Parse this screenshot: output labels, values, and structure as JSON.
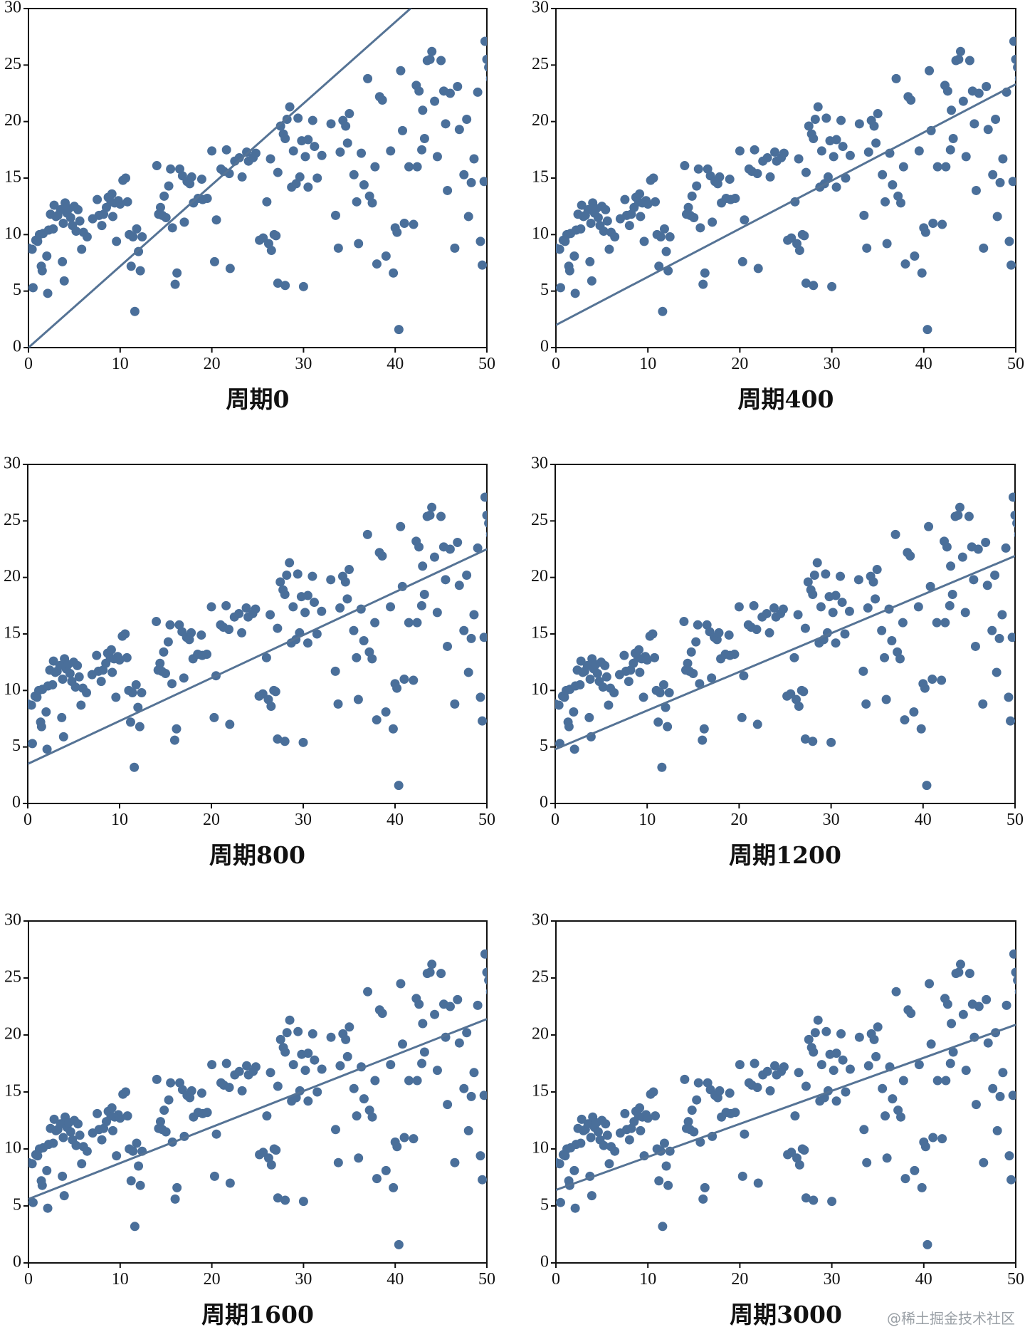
{
  "watermark": "@稀土掘金技术社区",
  "colors": {
    "marker": "#4a6f9a",
    "line": "#557395",
    "axis": "#111111"
  },
  "chart_data": [
    {
      "type": "scatter",
      "title": "周期0",
      "xlim": [
        0,
        50
      ],
      "ylim": [
        0,
        30
      ],
      "xticks": [
        0,
        10,
        20,
        30,
        40,
        50
      ],
      "yticks": [
        0,
        5,
        10,
        15,
        20,
        25,
        30
      ],
      "grid": false,
      "fit_line": {
        "intercept": 0.0,
        "slope": 0.72
      },
      "points": "shared"
    },
    {
      "type": "scatter",
      "title": "周期400",
      "xlim": [
        0,
        50
      ],
      "ylim": [
        0,
        30
      ],
      "xticks": [
        0,
        10,
        20,
        30,
        40,
        50
      ],
      "yticks": [
        0,
        5,
        10,
        15,
        20,
        25,
        30
      ],
      "grid": false,
      "fit_line": {
        "intercept": 2.0,
        "slope": 0.426
      },
      "points": "shared"
    },
    {
      "type": "scatter",
      "title": "周期800",
      "xlim": [
        0,
        50
      ],
      "ylim": [
        0,
        30
      ],
      "xticks": [
        0,
        10,
        20,
        30,
        40,
        50
      ],
      "yticks": [
        0,
        5,
        10,
        15,
        20,
        25,
        30
      ],
      "grid": false,
      "fit_line": {
        "intercept": 3.5,
        "slope": 0.38
      },
      "points": "shared"
    },
    {
      "type": "scatter",
      "title": "周期1200",
      "xlim": [
        0,
        50
      ],
      "ylim": [
        0,
        30
      ],
      "xticks": [
        0,
        10,
        20,
        30,
        40,
        50
      ],
      "yticks": [
        0,
        5,
        10,
        15,
        20,
        25,
        30
      ],
      "grid": false,
      "fit_line": {
        "intercept": 4.8,
        "slope": 0.342
      },
      "points": "shared"
    },
    {
      "type": "scatter",
      "title": "周期1600",
      "xlim": [
        0,
        50
      ],
      "ylim": [
        0,
        30
      ],
      "xticks": [
        0,
        10,
        20,
        30,
        40,
        50
      ],
      "yticks": [
        0,
        5,
        10,
        15,
        20,
        25,
        30
      ],
      "grid": false,
      "fit_line": {
        "intercept": 5.6,
        "slope": 0.316
      },
      "points": "shared"
    },
    {
      "type": "scatter",
      "title": "周期3000",
      "xlim": [
        0,
        50
      ],
      "ylim": [
        0,
        30
      ],
      "xticks": [
        0,
        10,
        20,
        30,
        40,
        50
      ],
      "yticks": [
        0,
        5,
        10,
        15,
        20,
        25,
        30
      ],
      "grid": false,
      "fit_line": {
        "intercept": 6.4,
        "slope": 0.29
      },
      "points": "shared"
    }
  ],
  "scatter_points": [
    [
      0.0,
      8.8
    ],
    [
      0.4,
      8.7
    ],
    [
      0.5,
      5.3
    ],
    [
      0.8,
      9.5
    ],
    [
      1.0,
      9.4
    ],
    [
      1.2,
      10.0
    ],
    [
      1.4,
      7.2
    ],
    [
      1.5,
      6.8
    ],
    [
      1.6,
      10.1
    ],
    [
      2.0,
      8.1
    ],
    [
      2.1,
      4.8
    ],
    [
      2.2,
      10.4
    ],
    [
      2.4,
      11.8
    ],
    [
      2.7,
      10.5
    ],
    [
      2.8,
      12.6
    ],
    [
      3.0,
      11.6
    ],
    [
      3.2,
      11.7
    ],
    [
      3.5,
      12.2
    ],
    [
      3.7,
      7.6
    ],
    [
      3.8,
      11.0
    ],
    [
      3.9,
      5.9
    ],
    [
      4.0,
      12.8
    ],
    [
      4.2,
      11.9
    ],
    [
      4.4,
      12.3
    ],
    [
      4.6,
      11.5
    ],
    [
      4.8,
      10.8
    ],
    [
      5.0,
      12.5
    ],
    [
      5.2,
      10.3
    ],
    [
      5.4,
      12.2
    ],
    [
      5.6,
      11.2
    ],
    [
      5.8,
      8.7
    ],
    [
      6.0,
      10.2
    ],
    [
      7.5,
      13.1
    ],
    [
      7.7,
      11.7
    ],
    [
      8.0,
      10.8
    ],
    [
      8.2,
      11.8
    ],
    [
      8.5,
      12.4
    ],
    [
      8.7,
      13.3
    ],
    [
      9.0,
      12.9
    ],
    [
      9.2,
      11.6
    ],
    [
      9.4,
      12.8
    ],
    [
      9.6,
      9.4
    ],
    [
      9.8,
      13.0
    ],
    [
      10.0,
      12.7
    ],
    [
      10.3,
      14.8
    ],
    [
      10.6,
      15.0
    ],
    [
      10.8,
      12.9
    ],
    [
      11.0,
      10.0
    ],
    [
      11.2,
      7.2
    ],
    [
      11.4,
      9.8
    ],
    [
      11.6,
      3.2
    ],
    [
      11.8,
      10.5
    ],
    [
      12.0,
      8.5
    ],
    [
      12.2,
      6.8
    ],
    [
      12.4,
      9.8
    ],
    [
      14.0,
      16.1
    ],
    [
      14.2,
      11.8
    ],
    [
      14.4,
      12.4
    ],
    [
      14.6,
      11.7
    ],
    [
      14.8,
      13.4
    ],
    [
      15.0,
      11.5
    ],
    [
      15.3,
      14.3
    ],
    [
      15.5,
      15.8
    ],
    [
      15.7,
      10.6
    ],
    [
      16.0,
      5.6
    ],
    [
      16.2,
      6.6
    ],
    [
      16.5,
      15.8
    ],
    [
      16.8,
      15.2
    ],
    [
      17.0,
      11.1
    ],
    [
      17.3,
      14.7
    ],
    [
      17.6,
      14.5
    ],
    [
      17.8,
      15.1
    ],
    [
      18.0,
      12.8
    ],
    [
      18.5,
      13.2
    ],
    [
      19.0,
      13.1
    ],
    [
      19.5,
      13.2
    ],
    [
      20.0,
      17.4
    ],
    [
      20.3,
      7.6
    ],
    [
      20.5,
      11.3
    ],
    [
      21.0,
      15.8
    ],
    [
      21.3,
      15.6
    ],
    [
      21.6,
      17.5
    ],
    [
      22.0,
      7.0
    ],
    [
      22.5,
      16.5
    ],
    [
      23.0,
      16.8
    ],
    [
      23.3,
      15.1
    ],
    [
      23.8,
      17.3
    ],
    [
      24.0,
      16.5
    ],
    [
      24.5,
      16.8
    ],
    [
      24.8,
      17.2
    ],
    [
      25.2,
      9.5
    ],
    [
      26.0,
      12.9
    ],
    [
      26.2,
      9.2
    ],
    [
      26.5,
      8.6
    ],
    [
      26.8,
      10.0
    ],
    [
      27.0,
      9.9
    ],
    [
      27.2,
      15.5
    ],
    [
      27.5,
      19.6
    ],
    [
      27.8,
      18.9
    ],
    [
      28.0,
      18.5
    ],
    [
      28.2,
      20.2
    ],
    [
      28.5,
      21.3
    ],
    [
      28.7,
      14.2
    ],
    [
      28.9,
      17.4
    ],
    [
      29.2,
      14.5
    ],
    [
      29.4,
      20.3
    ],
    [
      29.6,
      15.1
    ],
    [
      29.8,
      18.3
    ],
    [
      27.2,
      5.7
    ],
    [
      28.0,
      5.5
    ],
    [
      30.0,
      5.4
    ],
    [
      30.2,
      16.9
    ],
    [
      30.5,
      18.4
    ],
    [
      31.0,
      20.1
    ],
    [
      32.0,
      17.0
    ],
    [
      33.0,
      19.8
    ],
    [
      33.5,
      11.7
    ],
    [
      33.8,
      8.8
    ],
    [
      34.0,
      17.3
    ],
    [
      34.3,
      20.1
    ],
    [
      34.6,
      19.6
    ],
    [
      35.0,
      20.7
    ],
    [
      35.5,
      15.3
    ],
    [
      35.8,
      12.9
    ],
    [
      36.0,
      9.2
    ],
    [
      36.3,
      17.2
    ],
    [
      37.0,
      23.8
    ],
    [
      37.2,
      13.4
    ],
    [
      37.5,
      12.8
    ],
    [
      37.8,
      16.0
    ],
    [
      38.0,
      7.4
    ],
    [
      38.3,
      22.2
    ],
    [
      38.6,
      21.9
    ],
    [
      39.0,
      8.1
    ],
    [
      39.5,
      17.4
    ],
    [
      39.8,
      6.6
    ],
    [
      40.0,
      10.6
    ],
    [
      40.2,
      10.2
    ],
    [
      40.4,
      1.6
    ],
    [
      40.6,
      24.5
    ],
    [
      40.8,
      19.2
    ],
    [
      41.0,
      11.0
    ],
    [
      41.5,
      16.0
    ],
    [
      42.0,
      10.9
    ],
    [
      42.3,
      23.2
    ],
    [
      42.6,
      22.7
    ],
    [
      42.9,
      17.5
    ],
    [
      43.2,
      18.5
    ],
    [
      43.5,
      25.4
    ],
    [
      43.8,
      25.5
    ],
    [
      44.0,
      26.2
    ],
    [
      44.3,
      21.8
    ],
    [
      44.6,
      16.9
    ],
    [
      45.0,
      25.4
    ],
    [
      45.3,
      22.7
    ],
    [
      45.7,
      13.9
    ],
    [
      46.0,
      22.5
    ],
    [
      46.5,
      8.8
    ],
    [
      47.0,
      19.3
    ],
    [
      47.5,
      15.3
    ],
    [
      48.0,
      11.6
    ],
    [
      48.3,
      14.6
    ],
    [
      48.6,
      16.7
    ],
    [
      49.0,
      22.6
    ],
    [
      49.3,
      9.4
    ],
    [
      49.5,
      7.3
    ],
    [
      49.7,
      14.7
    ],
    [
      49.8,
      27.1
    ],
    [
      50.0,
      25.5
    ],
    [
      50.2,
      24.8
    ],
    [
      50.4,
      23.8
    ],
    [
      50.6,
      23.9
    ],
    [
      30.5,
      14.2
    ],
    [
      31.5,
      15.0
    ],
    [
      34.8,
      18.1
    ],
    [
      36.6,
      14.4
    ],
    [
      42.4,
      16.0
    ],
    [
      46.8,
      23.1
    ],
    [
      45.5,
      19.8
    ],
    [
      43.0,
      21.0
    ],
    [
      47.8,
      20.2
    ],
    [
      6.4,
      9.8
    ],
    [
      7.0,
      11.4
    ],
    [
      9.1,
      13.6
    ],
    [
      18.9,
      14.9
    ],
    [
      21.9,
      15.4
    ],
    [
      25.6,
      9.7
    ],
    [
      31.2,
      17.8
    ],
    [
      26.4,
      16.7
    ]
  ]
}
